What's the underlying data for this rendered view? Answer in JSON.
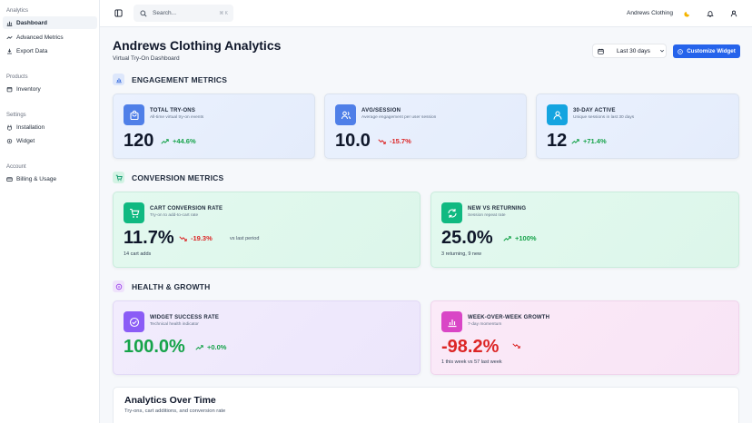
{
  "sidebar": {
    "groups": [
      {
        "heading": "Analytics",
        "items": [
          {
            "label": "Dashboard",
            "icon": "bar-chart-icon"
          },
          {
            "label": "Advanced Metrics",
            "icon": "trend-icon"
          },
          {
            "label": "Export Data",
            "icon": "download-icon"
          }
        ]
      },
      {
        "heading": "Products",
        "items": [
          {
            "label": "Inventory",
            "icon": "box-icon"
          }
        ]
      },
      {
        "heading": "Settings",
        "items": [
          {
            "label": "Installation",
            "icon": "plug-icon"
          },
          {
            "label": "Widget",
            "icon": "gear-icon"
          }
        ]
      },
      {
        "heading": "Account",
        "items": [
          {
            "label": "Billing & Usage",
            "icon": "card-icon"
          }
        ]
      }
    ]
  },
  "topbar": {
    "search_placeholder": "Search...",
    "search_shortcut": "⌘ K",
    "store_name": "Andrews Clothing"
  },
  "header": {
    "title": "Andrews Clothing Analytics",
    "subtitle": "Virtual Try-On Dashboard",
    "date_range": "Last 30 days",
    "customize_label": "Customize Widget"
  },
  "engagement": {
    "heading": "ENGAGEMENT METRICS",
    "cards": [
      {
        "title": "TOTAL TRY-ONS",
        "sub": "All-time virtual try-on events",
        "value": "120",
        "trend": "+44.6%"
      },
      {
        "title": "AVG/SESSION",
        "sub": "Average engagement per user session",
        "value": "10.0",
        "trend": "-15.7%"
      },
      {
        "title": "30-DAY ACTIVE",
        "sub": "Unique sessions in last 30 days",
        "value": "12",
        "trend": "+71.4%"
      }
    ]
  },
  "conversion": {
    "heading": "CONVERSION METRICS",
    "cards": [
      {
        "title": "CART CONVERSION RATE",
        "sub": "Try-on to add-to-cart rate",
        "value": "11.7%",
        "trend": "-19.3%",
        "extra": "vs last period",
        "note": "14 cart adds"
      },
      {
        "title": "NEW VS RETURNING",
        "sub": "Session repeat rate",
        "value": "25.0%",
        "trend": "+100%",
        "note": "3 returning, 9 new"
      }
    ]
  },
  "health": {
    "heading": "HEALTH & GROWTH",
    "cards": [
      {
        "title": "WIDGET SUCCESS RATE",
        "sub": "Technical health indicator",
        "value": "100.0%",
        "trend": "+0.0%"
      },
      {
        "title": "WEEK-OVER-WEEK GROWTH",
        "sub": "7-day momentum",
        "value": "-98.2%",
        "note": "1 this week vs 57 last week"
      }
    ]
  },
  "analytics": {
    "title": "Analytics Over Time",
    "subtitle": "Try-ons, cart additions, and conversion rate"
  },
  "colors": {
    "accent": "#2563eb",
    "positive": "#16a34a",
    "negative": "#dc2626",
    "blue_icon": "#4f7fe8",
    "teal_icon": "#14a4e0",
    "green_icon": "#10b981",
    "purple_icon": "#8b5cf6",
    "pink_icon": "#d946c6"
  }
}
